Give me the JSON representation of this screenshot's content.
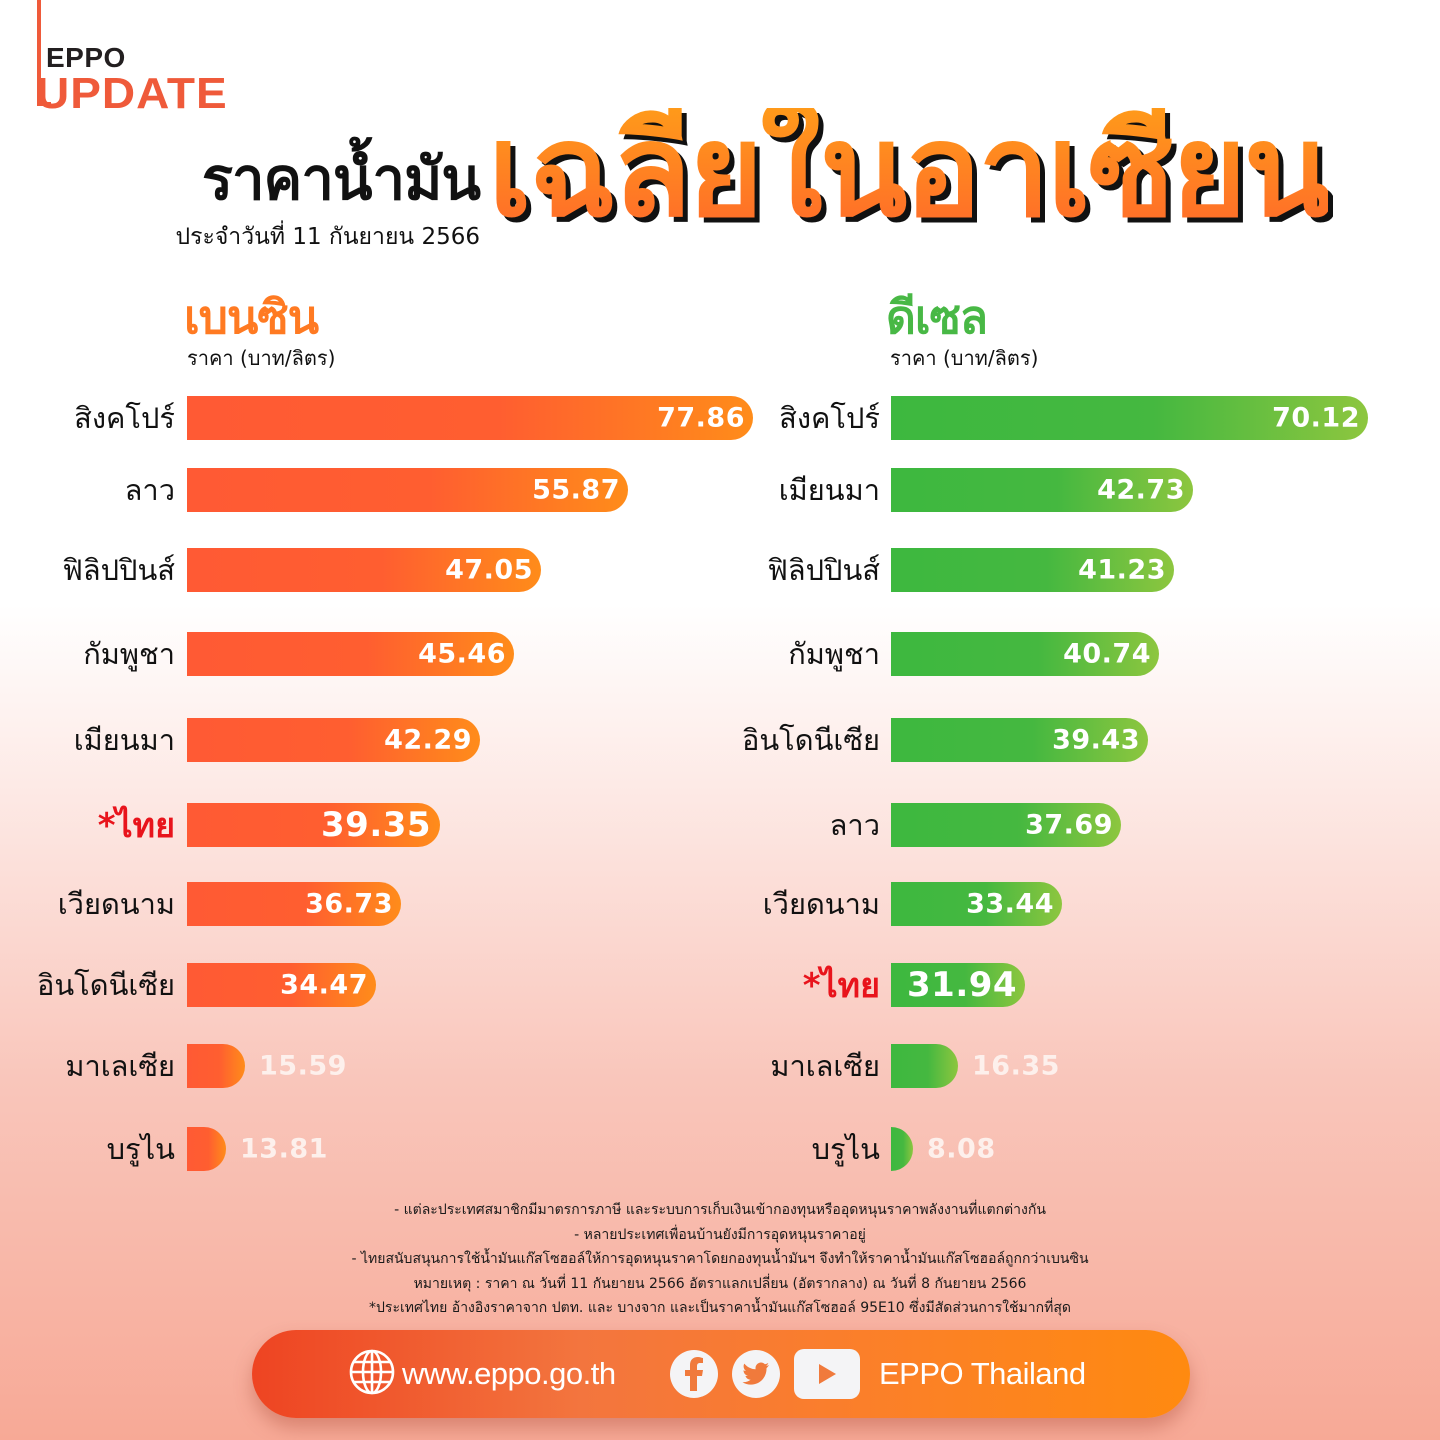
{
  "logo": {
    "top": "EPPO",
    "bottom": "UPDATE"
  },
  "title": {
    "main": "ราคาน้ำมัน",
    "highlight": "เฉลี่ยในอาเซียน",
    "date": "ประจำวันที่ 11 กันยายน 2566"
  },
  "sections": {
    "gasoline": {
      "title": "เบนซิน",
      "unit": "ราคา (บาท/ลิตร)"
    },
    "diesel": {
      "title": "ดีเซล",
      "unit": "ราคา (บาท/ลิตร)"
    }
  },
  "colors": {
    "gasoline_start": "#ff5a34",
    "gasoline_end": "#ff8c1a",
    "diesel_start": "#3db83f",
    "diesel_end": "#8dc63f",
    "thai_highlight": "#e8141c",
    "brand_orange": "#ef5a3a"
  },
  "chart_data": [
    {
      "type": "bar",
      "orientation": "horizontal",
      "title": "เบนซิน",
      "ylabel": "ราคา (บาท/ลิตร)",
      "categories": [
        "สิงคโปร์",
        "ลาว",
        "ฟิลิปปินส์",
        "กัมพูชา",
        "เมียนมา",
        "*ไทย",
        "เวียดนาม",
        "อินโดนีเซีย",
        "มาเลเซีย",
        "บรูไน"
      ],
      "values": [
        77.86,
        55.87,
        47.05,
        45.46,
        42.29,
        39.35,
        36.73,
        34.47,
        15.59,
        13.81
      ],
      "labels": [
        "77.86",
        "55.87",
        "47.05",
        "45.46",
        "42.29",
        "39.35",
        "36.73",
        "34.47",
        "15.59",
        "13.81"
      ],
      "highlight": "*ไทย",
      "grid": false,
      "legend": null
    },
    {
      "type": "bar",
      "orientation": "horizontal",
      "title": "ดีเซล",
      "ylabel": "ราคา (บาท/ลิตร)",
      "categories": [
        "สิงคโปร์",
        "เมียนมา",
        "ฟิลิปปินส์",
        "กัมพูชา",
        "อินโดนีเซีย",
        "ลาว",
        "เวียดนาม",
        "*ไทย",
        "มาเลเซีย",
        "บรูไน"
      ],
      "values": [
        70.12,
        42.73,
        41.23,
        40.74,
        39.43,
        37.69,
        33.44,
        31.94,
        16.35,
        8.08
      ],
      "labels": [
        "70.12",
        "42.73",
        "41.23",
        "40.74",
        "39.43",
        "37.69",
        "33.44",
        "31.94",
        "16.35",
        "8.08"
      ],
      "highlight": "*ไทย",
      "grid": false,
      "legend": null
    }
  ],
  "gasoline_rows": [
    {
      "country": "สิงคโปร์",
      "value": "77.86"
    },
    {
      "country": "ลาว",
      "value": "55.87"
    },
    {
      "country": "ฟิลิปปินส์",
      "value": "47.05"
    },
    {
      "country": "กัมพูชา",
      "value": "45.46"
    },
    {
      "country": "เมียนมา",
      "value": "42.29"
    },
    {
      "country": "*ไทย",
      "value": "39.35"
    },
    {
      "country": "เวียดนาม",
      "value": "36.73"
    },
    {
      "country": "อินโดนีเซีย",
      "value": "34.47"
    },
    {
      "country": "มาเลเซีย",
      "value": "15.59"
    },
    {
      "country": "บรูไน",
      "value": "13.81"
    }
  ],
  "diesel_rows": [
    {
      "country": "สิงคโปร์",
      "value": "70.12"
    },
    {
      "country": "เมียนมา",
      "value": "42.73"
    },
    {
      "country": "ฟิลิปปินส์",
      "value": "41.23"
    },
    {
      "country": "กัมพูชา",
      "value": "40.74"
    },
    {
      "country": "อินโดนีเซีย",
      "value": "39.43"
    },
    {
      "country": "ลาว",
      "value": "37.69"
    },
    {
      "country": "เวียดนาม",
      "value": "33.44"
    },
    {
      "country": "*ไทย",
      "value": "31.94"
    },
    {
      "country": "มาเลเซีย",
      "value": "16.35"
    },
    {
      "country": "บรูไน",
      "value": "8.08"
    }
  ],
  "notes": [
    "- แต่ละประเทศสมาชิกมีมาตรการภาษี และระบบการเก็บเงินเข้ากองทุนหรืออุดหนุนราคาพลังงานที่แตกต่างกัน",
    "- หลายประเทศเพื่อนบ้านยังมีการอุดหนุนราคาอยู่",
    "- ไทยสนับสนุนการใช้น้ำมันแก๊สโซฮอล์ให้การอุดหนุนราคาโดยกองทุนน้ำมันฯ จึงทำให้ราคาน้ำมันแก๊สโซฮอล์ถูกกว่าเบนซิน",
    "หมายเหตุ :  ราคา ณ วันที่ 11 กันยายน 2566 อัตราแลกเปลี่ยน (อัตรากลาง) ณ วันที่ 8 กันยายน 2566",
    "*ประเทศไทย อ้างอิงราคาจาก ปตท. และ บางจาก และเป็นราคาน้ำมันแก๊สโซฮอล์ 95E10 ซึ่งมีสัดส่วนการใช้มากที่สุด"
  ],
  "footer": {
    "website": "www.eppo.go.th",
    "social_name": "EPPO Thailand",
    "icons": [
      "globe-icon",
      "facebook-icon",
      "twitter-icon",
      "youtube-icon"
    ]
  }
}
